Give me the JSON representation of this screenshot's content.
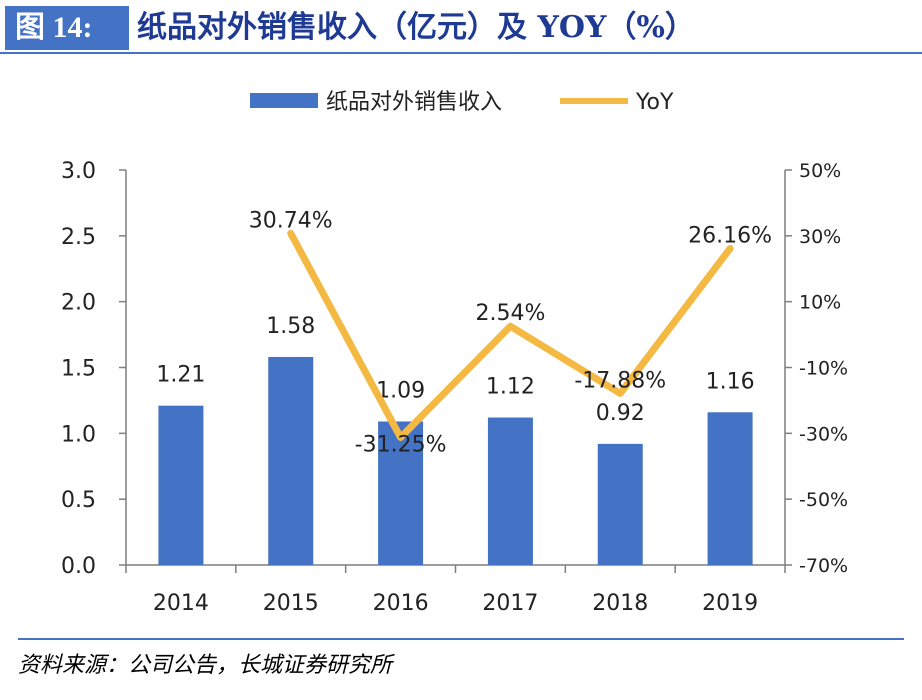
{
  "header": {
    "figure_label": "图 14:",
    "title": "纸品对外销售收入（亿元）及 YOY（%）"
  },
  "source": "资料来源：公司公告，长城证券研究所",
  "colors": {
    "bar": "#4472C4",
    "line": "#F4B942",
    "accent": "#4472C4",
    "text": "#222222"
  },
  "chart_data": {
    "type": "bar",
    "categories": [
      "2014",
      "2015",
      "2016",
      "2017",
      "2018",
      "2019"
    ],
    "series": [
      {
        "name": "纸品对外销售收入",
        "type": "bar",
        "axis": "left",
        "values": [
          1.21,
          1.58,
          1.09,
          1.12,
          0.92,
          1.16
        ],
        "labels": [
          "1.21",
          "1.58",
          "1.09",
          "1.12",
          "0.92",
          "1.16"
        ]
      },
      {
        "name": "YoY",
        "type": "line",
        "axis": "right",
        "values": [
          null,
          30.74,
          -31.25,
          2.54,
          -17.88,
          26.16
        ],
        "labels": [
          "",
          "30.74%",
          "-31.25%",
          "2.54%",
          "-17.88%",
          "26.16%"
        ]
      }
    ],
    "y_left": {
      "min": 0,
      "max": 3,
      "ticks": [
        "0.0",
        "0.5",
        "1.0",
        "1.5",
        "2.0",
        "2.5",
        "3.0"
      ]
    },
    "y_right": {
      "min": -70,
      "max": 50,
      "ticks": [
        "-70%",
        "-50%",
        "-30%",
        "-10%",
        "10%",
        "30%",
        "50%"
      ]
    },
    "legend_position": "top",
    "grid": false
  }
}
